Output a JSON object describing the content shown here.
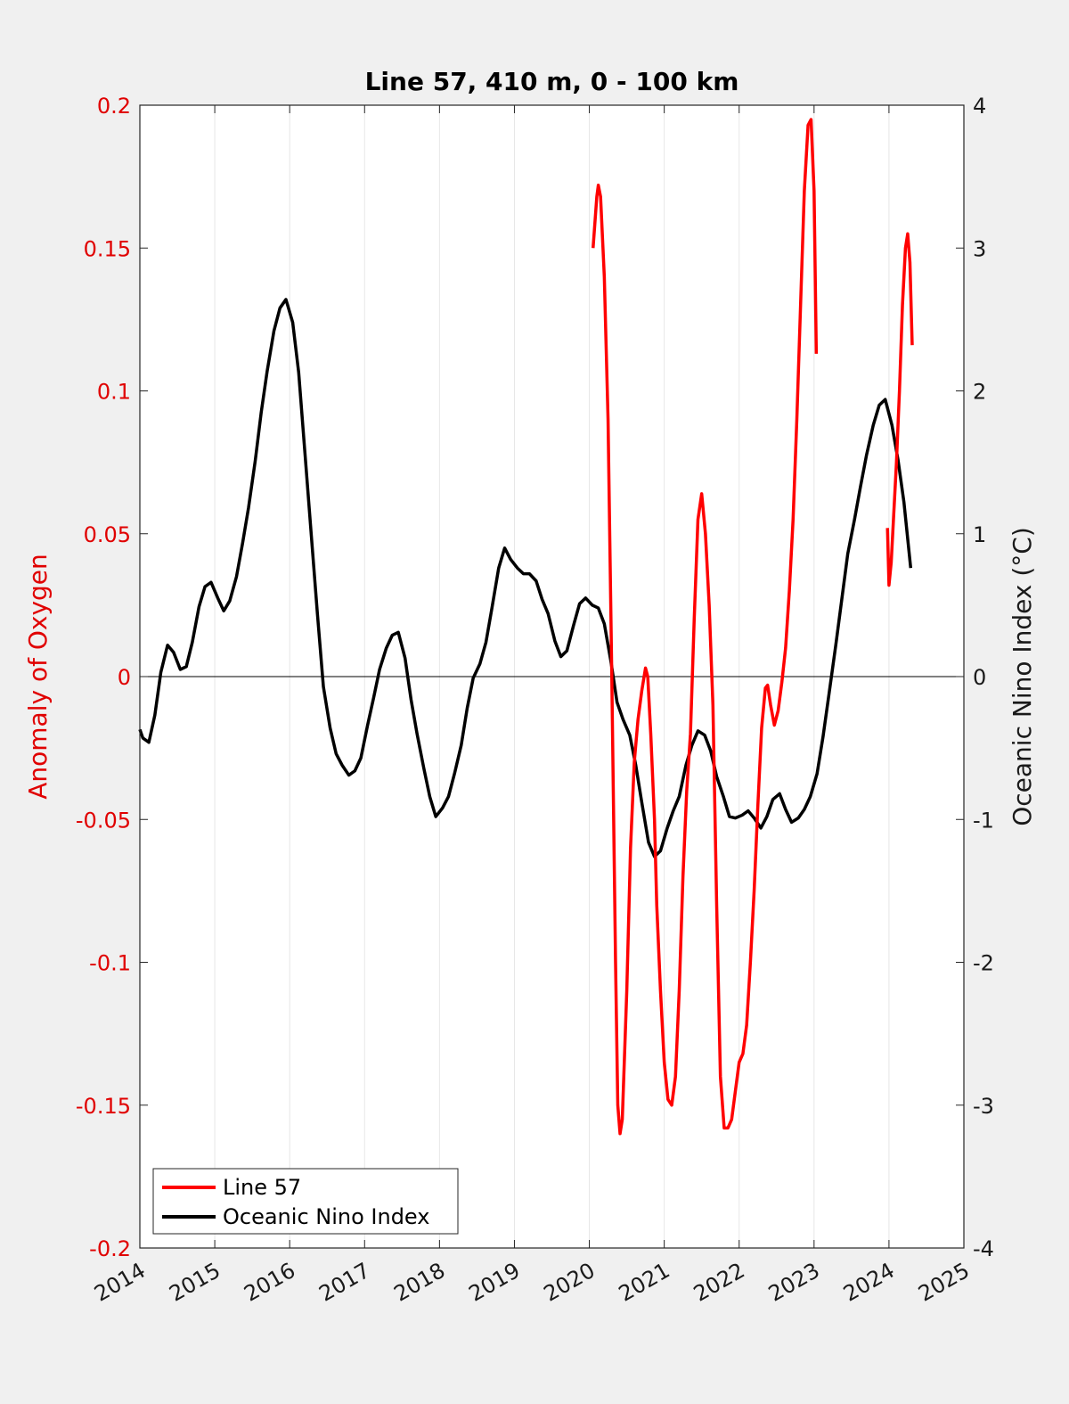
{
  "chart_data": {
    "type": "line",
    "title": "Line 57, 410 m, 0 - 100 km",
    "xlabel": "",
    "ylabel": "Anomaly of Oxygen",
    "y2label": "Oceanic Nino Index (°C)",
    "xlim": [
      2014,
      2025
    ],
    "ylim": [
      -0.2,
      0.2
    ],
    "y2lim": [
      -4,
      4
    ],
    "x_ticks": [
      2014,
      2015,
      2016,
      2017,
      2018,
      2019,
      2020,
      2021,
      2022,
      2023,
      2024,
      2025
    ],
    "x_tick_labels": [
      "2014",
      "2015",
      "2016",
      "2017",
      "2018",
      "2019",
      "2020",
      "2021",
      "2022",
      "2023",
      "2024",
      "2025"
    ],
    "y_ticks": [
      -0.2,
      -0.15,
      -0.1,
      -0.05,
      0,
      0.05,
      0.1,
      0.15,
      0.2
    ],
    "y_tick_labels": [
      "-0.2",
      "-0.15",
      "-0.1",
      "-0.05",
      "0",
      "0.05",
      "0.1",
      "0.15",
      "0.2"
    ],
    "y2_ticks": [
      -4,
      -3,
      -2,
      -1,
      0,
      1,
      2,
      3,
      4
    ],
    "y2_tick_labels": [
      "-4",
      "-3",
      "-2",
      "-1",
      "0",
      "1",
      "2",
      "3",
      "4"
    ],
    "grid": "x",
    "zero_line": true,
    "legend_position": "bottom-left",
    "series": [
      {
        "name": "Line 57",
        "axis": "left",
        "color": "#ff0000",
        "segments": [
          [
            [
              2020.05,
              0.15
            ],
            [
              2020.1,
              0.168
            ],
            [
              2020.12,
              0.172
            ],
            [
              2020.15,
              0.168
            ],
            [
              2020.2,
              0.14
            ],
            [
              2020.25,
              0.09
            ],
            [
              2020.3,
              0.0
            ],
            [
              2020.35,
              -0.1
            ],
            [
              2020.38,
              -0.15
            ],
            [
              2020.41,
              -0.16
            ],
            [
              2020.44,
              -0.155
            ],
            [
              2020.5,
              -0.11
            ],
            [
              2020.55,
              -0.06
            ],
            [
              2020.6,
              -0.03
            ],
            [
              2020.65,
              -0.015
            ],
            [
              2020.7,
              -0.005
            ],
            [
              2020.75,
              0.003
            ],
            [
              2020.78,
              0.0
            ],
            [
              2020.82,
              -0.02
            ],
            [
              2020.87,
              -0.05
            ],
            [
              2020.9,
              -0.08
            ],
            [
              2020.95,
              -0.11
            ],
            [
              2021.0,
              -0.135
            ],
            [
              2021.05,
              -0.148
            ],
            [
              2021.1,
              -0.15
            ],
            [
              2021.15,
              -0.14
            ],
            [
              2021.2,
              -0.11
            ],
            [
              2021.25,
              -0.07
            ],
            [
              2021.3,
              -0.04
            ],
            [
              2021.35,
              -0.02
            ],
            [
              2021.4,
              0.02
            ],
            [
              2021.45,
              0.055
            ],
            [
              2021.5,
              0.064
            ],
            [
              2021.55,
              0.05
            ],
            [
              2021.6,
              0.025
            ],
            [
              2021.65,
              -0.01
            ],
            [
              2021.7,
              -0.08
            ],
            [
              2021.75,
              -0.14
            ],
            [
              2021.8,
              -0.158
            ],
            [
              2021.85,
              -0.158
            ],
            [
              2021.9,
              -0.155
            ],
            [
              2021.95,
              -0.145
            ],
            [
              2022.0,
              -0.135
            ],
            [
              2022.05,
              -0.132
            ],
            [
              2022.1,
              -0.122
            ],
            [
              2022.15,
              -0.1
            ],
            [
              2022.2,
              -0.075
            ],
            [
              2022.25,
              -0.045
            ],
            [
              2022.3,
              -0.018
            ],
            [
              2022.35,
              -0.004
            ],
            [
              2022.38,
              -0.003
            ],
            [
              2022.42,
              -0.01
            ],
            [
              2022.47,
              -0.017
            ],
            [
              2022.52,
              -0.012
            ],
            [
              2022.57,
              -0.002
            ],
            [
              2022.62,
              0.01
            ],
            [
              2022.67,
              0.03
            ],
            [
              2022.72,
              0.055
            ],
            [
              2022.77,
              0.09
            ],
            [
              2022.82,
              0.13
            ],
            [
              2022.87,
              0.17
            ],
            [
              2022.92,
              0.193
            ],
            [
              2022.96,
              0.195
            ],
            [
              2023.0,
              0.17
            ],
            [
              2023.03,
              0.113
            ]
          ],
          [
            [
              2023.98,
              0.052
            ],
            [
              2024.0,
              0.032
            ],
            [
              2024.03,
              0.04
            ],
            [
              2024.06,
              0.055
            ],
            [
              2024.1,
              0.075
            ],
            [
              2024.14,
              0.1
            ],
            [
              2024.18,
              0.13
            ],
            [
              2024.22,
              0.15
            ],
            [
              2024.25,
              0.155
            ],
            [
              2024.28,
              0.145
            ],
            [
              2024.31,
              0.116
            ]
          ]
        ]
      },
      {
        "name": "Oceanic Nino Index",
        "axis": "right",
        "color": "#000000",
        "segments": [
          [
            [
              2014.0,
              -0.37
            ],
            [
              2014.04,
              -0.43
            ],
            [
              2014.12,
              -0.46
            ],
            [
              2014.2,
              -0.27
            ],
            [
              2014.28,
              0.03
            ],
            [
              2014.37,
              0.22
            ],
            [
              2014.45,
              0.17
            ],
            [
              2014.54,
              0.05
            ],
            [
              2014.62,
              0.07
            ],
            [
              2014.7,
              0.24
            ],
            [
              2014.79,
              0.49
            ],
            [
              2014.87,
              0.63
            ],
            [
              2014.95,
              0.66
            ],
            [
              2015.04,
              0.55
            ],
            [
              2015.12,
              0.46
            ],
            [
              2015.2,
              0.53
            ],
            [
              2015.29,
              0.7
            ],
            [
              2015.37,
              0.93
            ],
            [
              2015.45,
              1.18
            ],
            [
              2015.54,
              1.51
            ],
            [
              2015.62,
              1.85
            ],
            [
              2015.7,
              2.14
            ],
            [
              2015.79,
              2.42
            ],
            [
              2015.87,
              2.58
            ],
            [
              2015.95,
              2.64
            ],
            [
              2016.04,
              2.48
            ],
            [
              2016.12,
              2.13
            ],
            [
              2016.2,
              1.59
            ],
            [
              2016.29,
              0.98
            ],
            [
              2016.37,
              0.44
            ],
            [
              2016.45,
              -0.07
            ],
            [
              2016.54,
              -0.36
            ],
            [
              2016.62,
              -0.54
            ],
            [
              2016.7,
              -0.62
            ],
            [
              2016.79,
              -0.69
            ],
            [
              2016.87,
              -0.66
            ],
            [
              2016.95,
              -0.57
            ],
            [
              2017.04,
              -0.34
            ],
            [
              2017.12,
              -0.15
            ],
            [
              2017.2,
              0.05
            ],
            [
              2017.29,
              0.2
            ],
            [
              2017.37,
              0.29
            ],
            [
              2017.45,
              0.31
            ],
            [
              2017.54,
              0.13
            ],
            [
              2017.62,
              -0.16
            ],
            [
              2017.7,
              -0.4
            ],
            [
              2017.79,
              -0.64
            ],
            [
              2017.87,
              -0.84
            ],
            [
              2017.95,
              -0.98
            ],
            [
              2018.04,
              -0.92
            ],
            [
              2018.12,
              -0.84
            ],
            [
              2018.2,
              -0.68
            ],
            [
              2018.29,
              -0.48
            ],
            [
              2018.37,
              -0.22
            ],
            [
              2018.45,
              -0.01
            ],
            [
              2018.54,
              0.09
            ],
            [
              2018.62,
              0.24
            ],
            [
              2018.7,
              0.48
            ],
            [
              2018.79,
              0.76
            ],
            [
              2018.87,
              0.9
            ],
            [
              2018.95,
              0.82
            ],
            [
              2019.04,
              0.76
            ],
            [
              2019.12,
              0.72
            ],
            [
              2019.2,
              0.72
            ],
            [
              2019.29,
              0.67
            ],
            [
              2019.37,
              0.54
            ],
            [
              2019.45,
              0.44
            ],
            [
              2019.54,
              0.25
            ],
            [
              2019.62,
              0.14
            ],
            [
              2019.7,
              0.18
            ],
            [
              2019.79,
              0.36
            ],
            [
              2019.87,
              0.51
            ],
            [
              2019.95,
              0.55
            ],
            [
              2020.04,
              0.5
            ],
            [
              2020.12,
              0.48
            ],
            [
              2020.2,
              0.37
            ],
            [
              2020.29,
              0.1
            ],
            [
              2020.37,
              -0.18
            ],
            [
              2020.45,
              -0.3
            ],
            [
              2020.54,
              -0.41
            ],
            [
              2020.62,
              -0.62
            ],
            [
              2020.7,
              -0.88
            ],
            [
              2020.79,
              -1.16
            ],
            [
              2020.87,
              -1.26
            ],
            [
              2020.95,
              -1.22
            ],
            [
              2021.04,
              -1.06
            ],
            [
              2021.12,
              -0.94
            ],
            [
              2021.2,
              -0.84
            ],
            [
              2021.29,
              -0.62
            ],
            [
              2021.37,
              -0.48
            ],
            [
              2021.45,
              -0.38
            ],
            [
              2021.54,
              -0.41
            ],
            [
              2021.62,
              -0.52
            ],
            [
              2021.7,
              -0.7
            ],
            [
              2021.79,
              -0.84
            ],
            [
              2021.87,
              -0.98
            ],
            [
              2021.95,
              -0.99
            ],
            [
              2022.04,
              -0.97
            ],
            [
              2022.12,
              -0.94
            ],
            [
              2022.2,
              -0.99
            ],
            [
              2022.29,
              -1.06
            ],
            [
              2022.37,
              -0.98
            ],
            [
              2022.45,
              -0.86
            ],
            [
              2022.54,
              -0.82
            ],
            [
              2022.62,
              -0.93
            ],
            [
              2022.7,
              -1.02
            ],
            [
              2022.79,
              -0.99
            ],
            [
              2022.87,
              -0.93
            ],
            [
              2022.95,
              -0.84
            ],
            [
              2023.04,
              -0.68
            ],
            [
              2023.12,
              -0.42
            ],
            [
              2023.2,
              -0.12
            ],
            [
              2023.29,
              0.22
            ],
            [
              2023.37,
              0.54
            ],
            [
              2023.45,
              0.86
            ],
            [
              2023.54,
              1.1
            ],
            [
              2023.62,
              1.33
            ],
            [
              2023.7,
              1.55
            ],
            [
              2023.79,
              1.76
            ],
            [
              2023.87,
              1.9
            ],
            [
              2023.95,
              1.94
            ],
            [
              2024.04,
              1.76
            ],
            [
              2024.12,
              1.52
            ],
            [
              2024.2,
              1.22
            ],
            [
              2024.29,
              0.76
            ]
          ]
        ]
      }
    ]
  }
}
